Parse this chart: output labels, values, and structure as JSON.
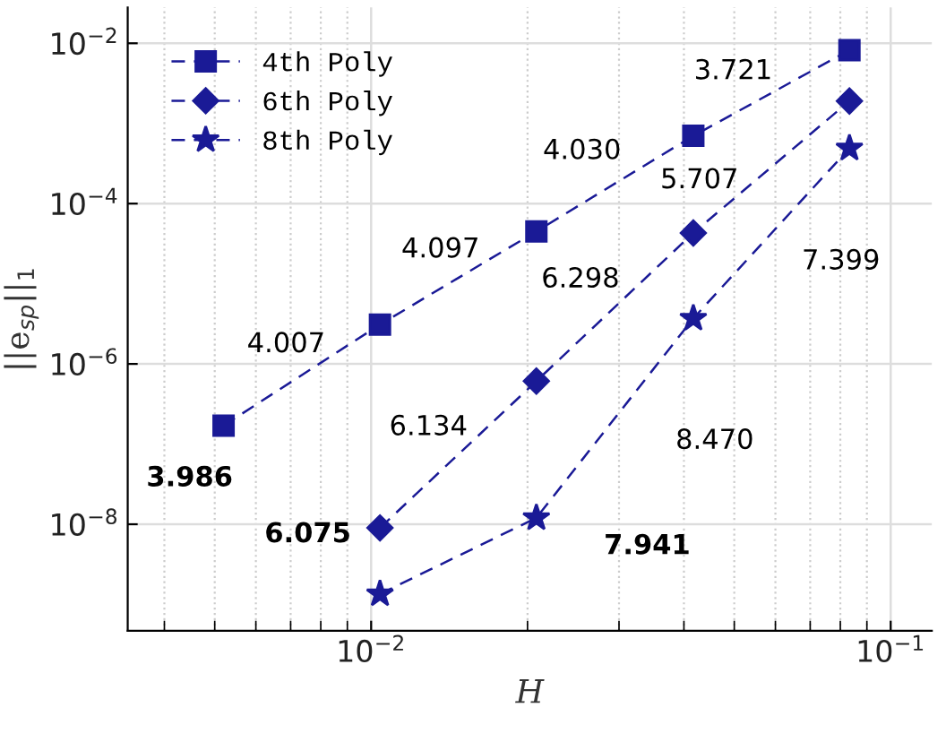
{
  "chart_data": {
    "type": "line",
    "xlabel": "H",
    "ylabel": "||e$_{sp}$||$_{1}$",
    "log": "xy",
    "xlim": [
      0.0034,
      0.12
    ],
    "ylim": [
      4.7e-10,
      0.028
    ],
    "xticks": [
      {
        "value": 0.01,
        "label": "10$^{−2}$"
      },
      {
        "value": 0.1,
        "label": "10$^{−1}$"
      }
    ],
    "yticks": [
      {
        "value": 1e-08,
        "label": "10$^{−8}$"
      },
      {
        "value": 1e-06,
        "label": "10$^{−6}$"
      },
      {
        "value": 0.0001,
        "label": "10$^{−4}$"
      },
      {
        "value": 0.01,
        "label": "10$^{−2}$"
      }
    ],
    "grid": true,
    "legend": "top left",
    "line_style": "dashed",
    "series": [
      {
        "name": "4th Poly",
        "color": "#1a1a96",
        "marker": "square",
        "x": [
          0.0052,
          0.0104,
          0.0208,
          0.0417,
          0.0833
        ],
        "values": [
          1.7e-07,
          3.1e-06,
          4.5e-05,
          0.0007,
          0.0082
        ]
      },
      {
        "name": "6th Poly",
        "color": "#1a1a96",
        "marker": "diamond",
        "x": [
          0.0104,
          0.0208,
          0.0417,
          0.0833
        ],
        "values": [
          9e-09,
          6.1e-07,
          4.3e-05,
          0.0019
        ]
      },
      {
        "name": "8th Poly",
        "color": "#1a1a96",
        "marker": "star",
        "x": [
          0.0104,
          0.0208,
          0.0417,
          0.0833
        ],
        "values": [
          1.35e-09,
          1.2e-08,
          3.7e-06,
          0.00049
        ]
      }
    ],
    "annotations": [
      "3.721",
      "4.030",
      "5.707",
      "4.097",
      "6.298",
      "7.399",
      "4.007",
      "6.134",
      "8.470",
      "3.986",
      "6.075",
      "7.941"
    ]
  }
}
